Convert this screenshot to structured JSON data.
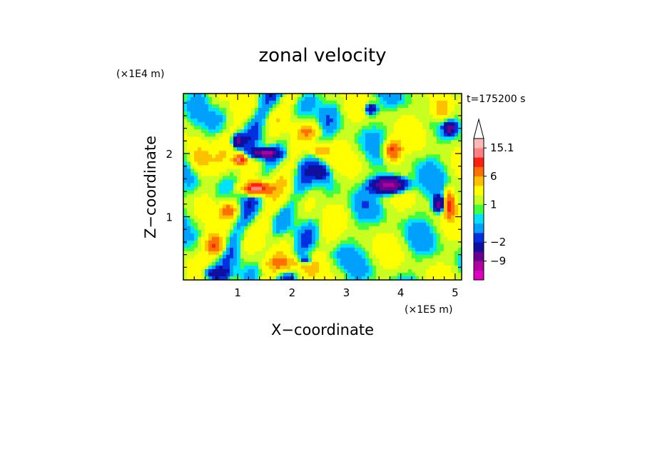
{
  "chart_data": {
    "type": "heatmap",
    "title": "zonal velocity",
    "xlabel": "X−coordinate",
    "ylabel": "Z−coordinate",
    "x_multiplier": "(×1E5 m)",
    "y_multiplier": "(×1E4 m)",
    "time_label": "t=175200 s",
    "xlim": [
      0,
      5.12
    ],
    "ylim": [
      0,
      2.95
    ],
    "x_ticks": [
      1,
      2,
      3,
      4,
      5
    ],
    "y_ticks": [
      1,
      2
    ],
    "x_tick_labels": [
      "1",
      "2",
      "3",
      "4",
      "5"
    ],
    "y_tick_labels": [
      "1",
      "2"
    ],
    "colorbar": {
      "levels_low_to_high": [
        -15,
        -12,
        -9,
        -6,
        -2,
        -1,
        0,
        0.5,
        1,
        2,
        4,
        6,
        9,
        12,
        15.1
      ],
      "colors_low_to_high": [
        "#e000c0",
        "#b000a0",
        "#6a0090",
        "#1010a0",
        "#0030e0",
        "#00a0ff",
        "#00e0ff",
        "#40ff40",
        "#c8ff20",
        "#ffff00",
        "#ffc000",
        "#ff7000",
        "#ff2010",
        "#ff8080",
        "#ffb8b8"
      ],
      "labels": [
        {
          "text": "15.1",
          "value": 15.1
        },
        {
          "text": "6",
          "value": 6
        },
        {
          "text": "1",
          "value": 1
        },
        {
          "text": "−2",
          "value": -2
        },
        {
          "text": "−9",
          "value": -9
        }
      ]
    }
  }
}
